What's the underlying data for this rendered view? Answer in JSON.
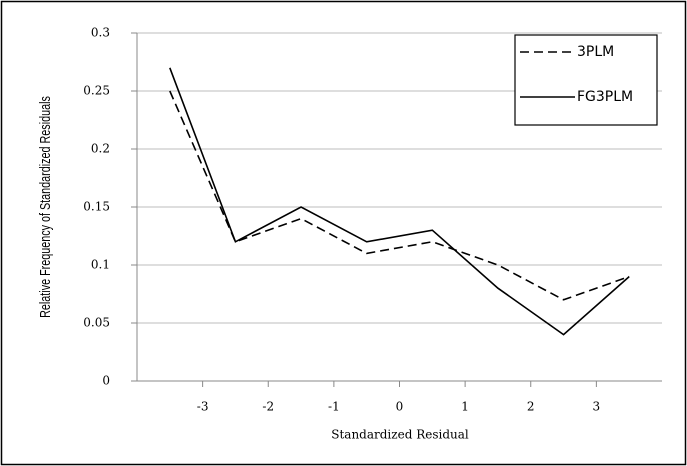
{
  "chart_data": {
    "type": "line",
    "x_label": "Standardized Residual",
    "y_label": "Relative Frequency of Standardized Residuals",
    "x": [
      -3.5,
      -2.5,
      -1.5,
      -0.5,
      0.5,
      1.5,
      2.5,
      3.5
    ],
    "xlim": [
      -4,
      4
    ],
    "xticks": [
      -3,
      -2,
      -1,
      0,
      1,
      2,
      3
    ],
    "ylim": [
      0,
      0.3
    ],
    "yticks": [
      0,
      0.05,
      0.1,
      0.15,
      0.2,
      0.25,
      0.3
    ],
    "grid": true,
    "legend": "top-right",
    "series": [
      {
        "name": "3PLM",
        "color": "#000000",
        "dash": "dashed",
        "values": [
          0.25,
          0.12,
          0.14,
          0.11,
          0.12,
          0.1,
          0.07,
          0.09
        ]
      },
      {
        "name": "FG3PLM",
        "color": "#000000",
        "dash": "solid",
        "values": [
          0.27,
          0.12,
          0.15,
          0.12,
          0.13,
          0.08,
          0.04,
          0.09
        ]
      }
    ]
  }
}
